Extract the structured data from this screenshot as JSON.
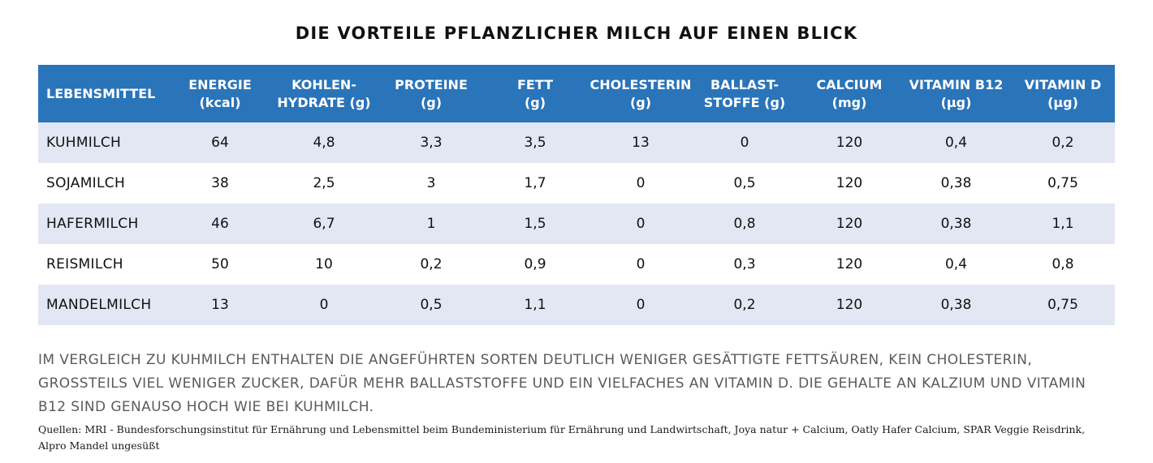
{
  "title": "DIE VORTEILE PFLANZLICHER MILCH AUF EINEN BLICK",
  "table": {
    "headers": [
      "LEBENSMITTEL",
      "ENERGIE\n(kcal)",
      "KOHLEN-\nHYDRATE (g)",
      "PROTEINE\n(g)",
      "FETT\n(g)",
      "CHOLESTERIN\n(g)",
      "BALLAST-\nSTOFFE (g)",
      "CALCIUM\n(mg)",
      "VITAMIN B12\n(µg)",
      "VITAMIN D\n(µg)"
    ],
    "rows": [
      [
        "KUHMILCH",
        "64",
        "4,8",
        "3,3",
        "3,5",
        "13",
        "0",
        "120",
        "0,4",
        "0,2"
      ],
      [
        "SOJAMILCH",
        "38",
        "2,5",
        "3",
        "1,7",
        "0",
        "0,5",
        "120",
        "0,38",
        "0,75"
      ],
      [
        "HAFERMILCH",
        "46",
        "6,7",
        "1",
        "1,5",
        "0",
        "0,8",
        "120",
        "0,38",
        "1,1"
      ],
      [
        "REISMILCH",
        "50",
        "10",
        "0,2",
        "0,9",
        "0",
        "0,3",
        "120",
        "0,4",
        "0,8"
      ],
      [
        "MANDELMILCH",
        "13",
        "0",
        "0,5",
        "1,1",
        "0",
        "0,2",
        "120",
        "0,38",
        "0,75"
      ]
    ]
  },
  "note": "IM VERGLEICH ZU KUHMILCH ENTHALTEN DIE ANGEFÜHRTEN SORTEN DEUTLICH WENIGER GESÄTTIGTE FETTSÄUREN, KEIN CHOLESTERIN, GROSSTEILS VIEL WENIGER ZUCKER, DAFÜR MEHR BALLASTSTOFFE UND EIN VIELFACHES AN VITAMIN D. DIE GEHALTE AN KALZIUM UND VITAMIN B12 SIND GENAUSO HOCH WIE BEI KUHMILCH.",
  "sources": "Quellen: MRI - Bundesforschungsinstitut für Ernährung und Lebensmittel beim Bundeministerium für Ernährung und Landwirtschaft, Joya natur + Calcium, Oatly Hafer Calcium, SPAR Veggie Reisdrink, Alpro Mandel ungesüßt",
  "colors": {
    "header_bg": "#2a74b9",
    "header_text": "#ffffff",
    "row_shade": "#e2e7f3",
    "note_text": "#5b5b5b"
  }
}
